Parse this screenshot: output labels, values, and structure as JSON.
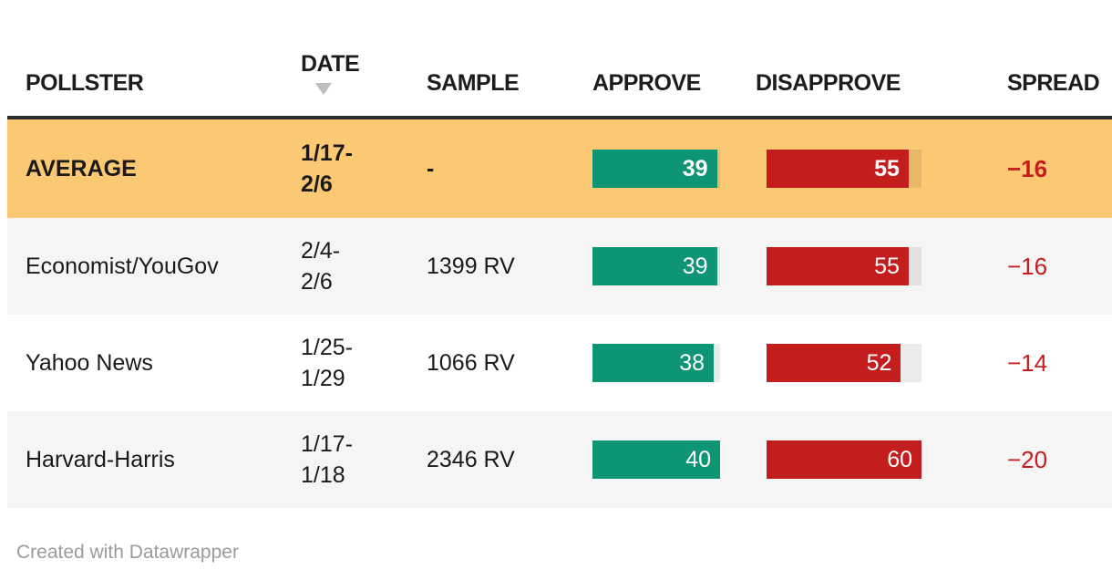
{
  "header": {
    "columns": [
      {
        "label": "POLLSTER"
      },
      {
        "label": "DATE",
        "sorted": "desc"
      },
      {
        "label": "SAMPLE"
      },
      {
        "label": "APPROVE"
      },
      {
        "label": "DISAPPROVE"
      },
      {
        "label": "SPREAD"
      }
    ]
  },
  "rows": [
    {
      "pollster": "AVERAGE",
      "date": "1/17-\n2/6",
      "sample": "-",
      "approve": "39",
      "approve_pct": 97.5,
      "disapprove": "55",
      "disapprove_pct": 91.7,
      "spread": "−16",
      "highlight": true
    },
    {
      "pollster": "Economist/YouGov",
      "date": "2/4-\n2/6",
      "sample": "1399 RV",
      "approve": "39",
      "approve_pct": 97.5,
      "disapprove": "55",
      "disapprove_pct": 91.7,
      "spread": "−16",
      "highlight": false
    },
    {
      "pollster": "Yahoo News",
      "date": "1/25-\n1/29",
      "sample": "1066 RV",
      "approve": "38",
      "approve_pct": 95,
      "disapprove": "52",
      "disapprove_pct": 86.7,
      "spread": "−14",
      "highlight": false
    },
    {
      "pollster": "Harvard-Harris",
      "date": "1/17-\n1/18",
      "sample": "2346 RV",
      "approve": "40",
      "approve_pct": 100,
      "disapprove": "60",
      "disapprove_pct": 100,
      "spread": "−20",
      "highlight": false
    }
  ],
  "footer": {
    "credit": "Created with Datawrapper"
  },
  "colors": {
    "highlight-bg": "#fbc874",
    "zebra-bg": "#f5f5f5",
    "approve-bar": "#0e9576",
    "disapprove-bar": "#c41d1d",
    "spread-text": "#c41d1d",
    "header-border": "#2b2b2b",
    "sort-arrow": "#bdbdbd",
    "footer-text": "#9b9b9b",
    "body-text": "#1a1a1a"
  },
  "chart_data": {
    "type": "table",
    "columns": [
      "POLLSTER",
      "DATE",
      "SAMPLE",
      "APPROVE",
      "DISAPPROVE",
      "SPREAD"
    ],
    "rows": [
      [
        "AVERAGE",
        "1/17-2/6",
        "-",
        39,
        55,
        -16
      ],
      [
        "Economist/YouGov",
        "2/4-2/6",
        "1399 RV",
        39,
        55,
        -16
      ],
      [
        "Yahoo News",
        "1/25-1/29",
        "1066 RV",
        38,
        52,
        -14
      ],
      [
        "Harvard-Harris",
        "1/17-1/18",
        "2346 RV",
        40,
        60,
        -20
      ]
    ],
    "bar_columns": {
      "APPROVE": {
        "color": "#0e9576",
        "axis_max": 40
      },
      "DISAPPROVE": {
        "color": "#c41d1d",
        "axis_max": 60
      }
    },
    "highlighted_row": "AVERAGE",
    "sort": {
      "column": "DATE",
      "direction": "desc"
    },
    "credit": "Created with Datawrapper"
  }
}
